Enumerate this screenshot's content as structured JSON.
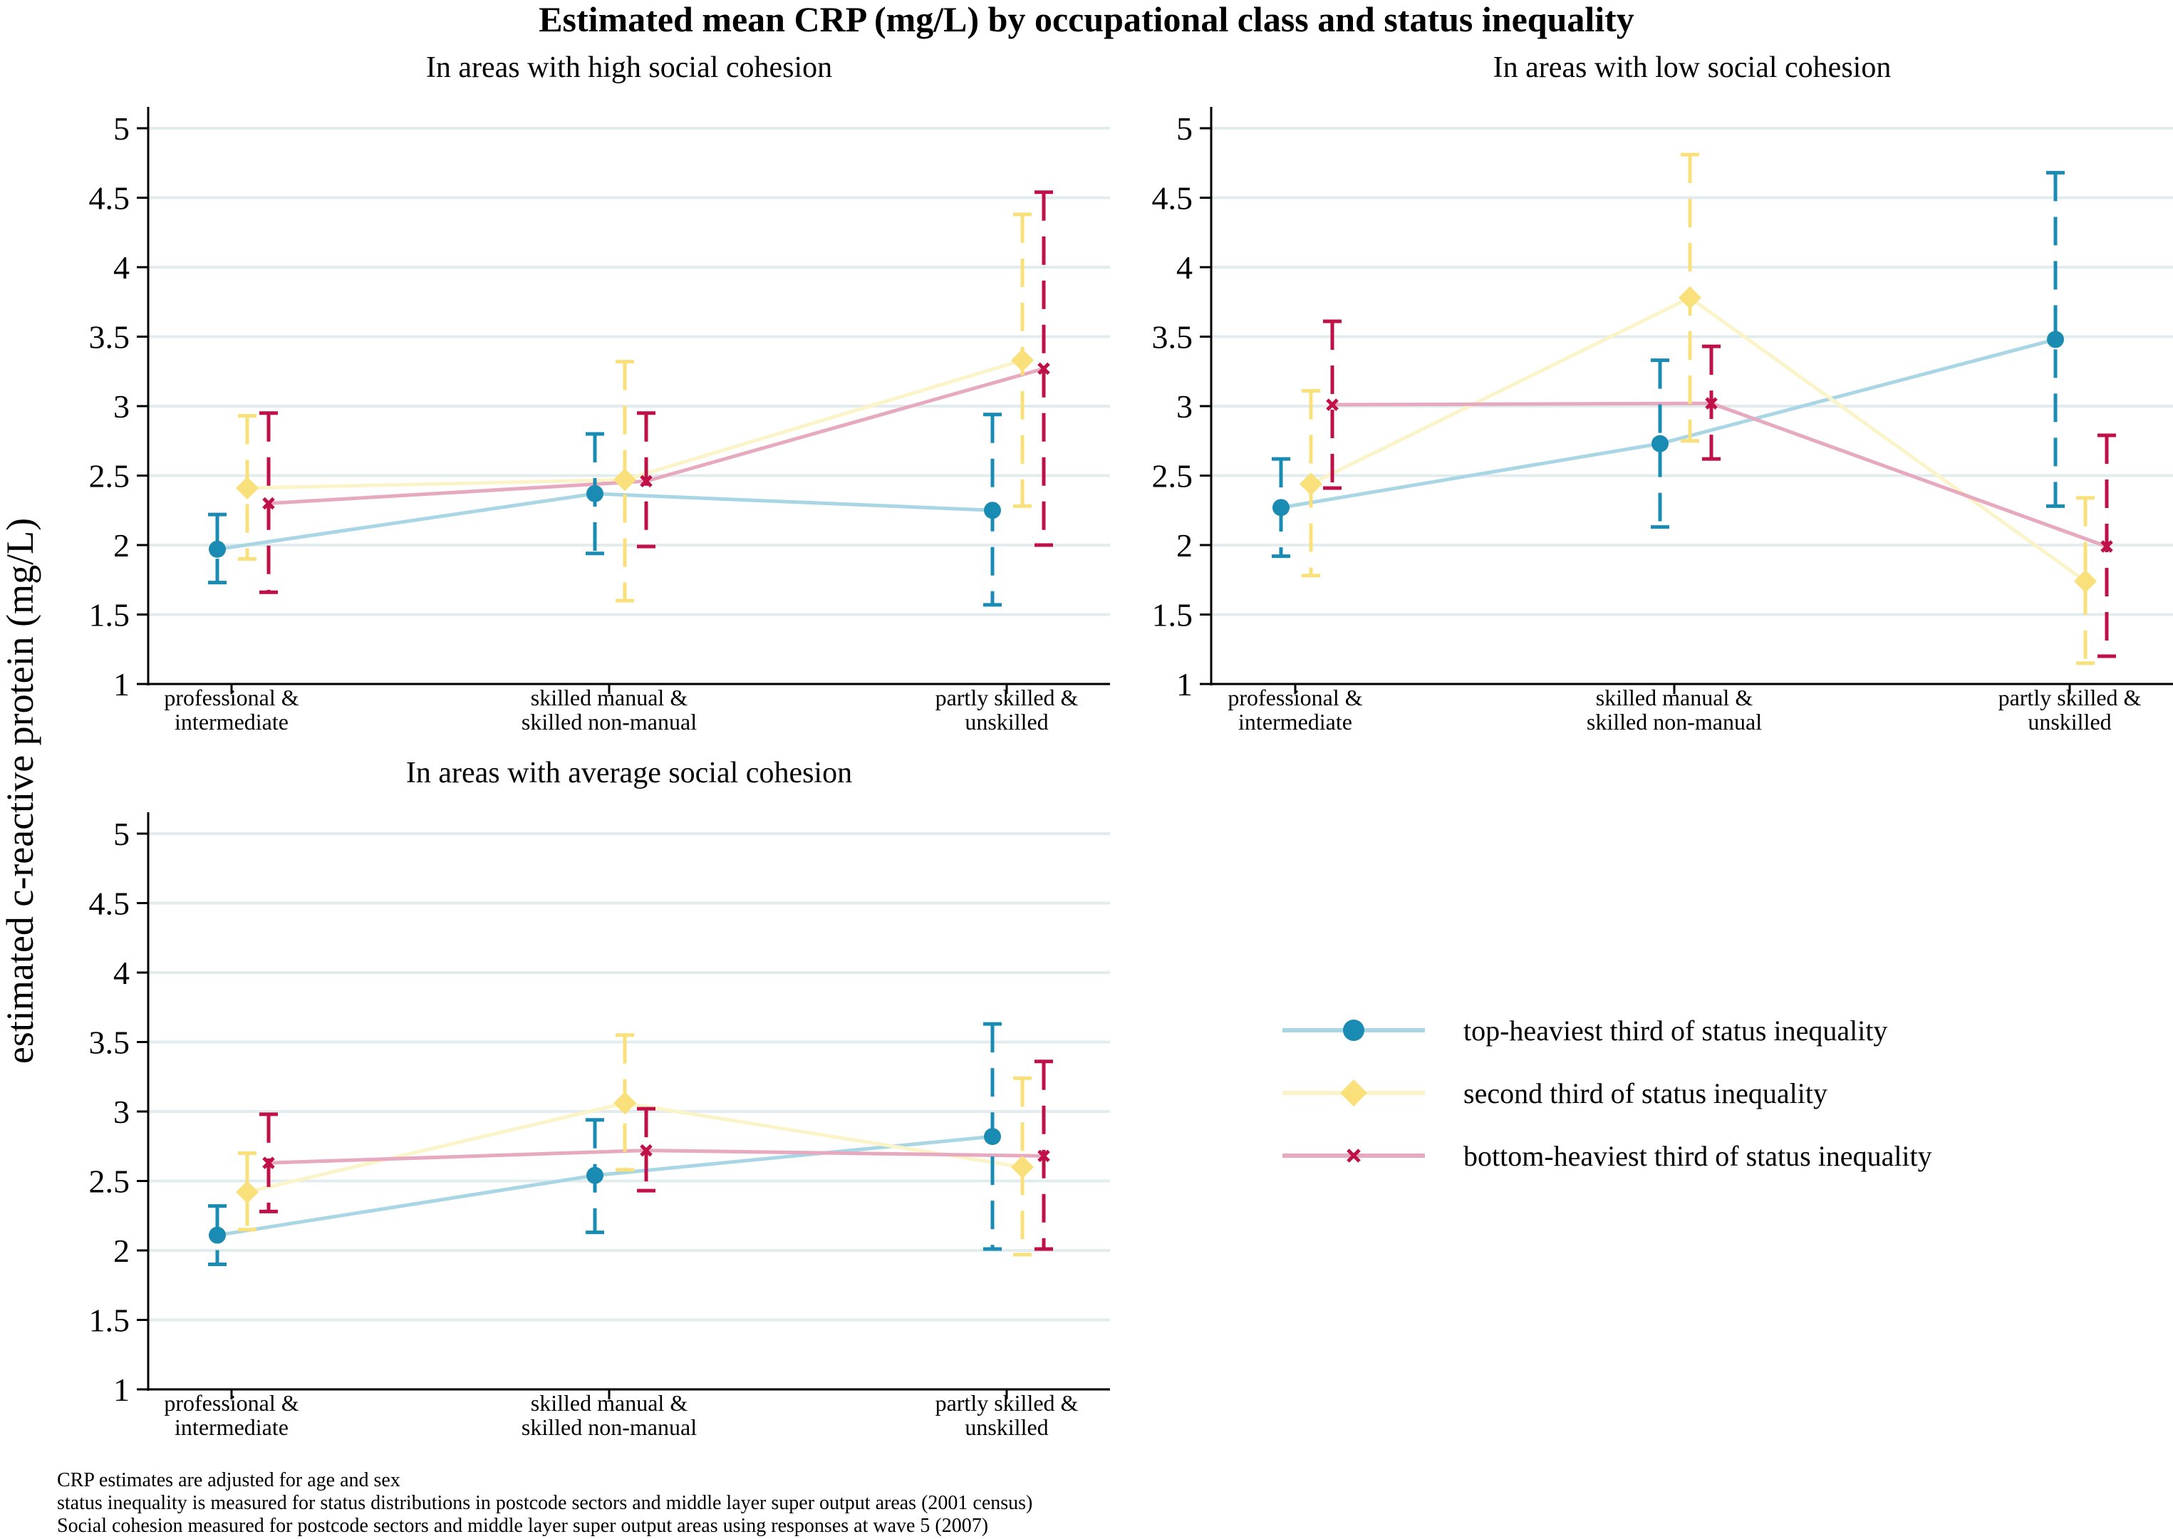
{
  "title": "Estimated mean CRP (mg/L) by occupational class and status inequality",
  "ylabel": "estimated c-reactive protein (mg/L)",
  "colors": {
    "top": "#1a8cb4",
    "top_line": "#a9d6e5",
    "second": "#f9e07a",
    "second_line": "#fbf4c9",
    "bottom": "#bf1148",
    "bottom_line": "#e6a9bf",
    "grid": "#e2ecee"
  },
  "legend": {
    "items": [
      {
        "key": "top",
        "label": "top-heaviest third of status inequality",
        "marker": "circle"
      },
      {
        "key": "second",
        "label": "second third of status inequality",
        "marker": "diamond"
      },
      {
        "key": "bottom",
        "label": "bottom-heaviest third of status inequality",
        "marker": "cross"
      }
    ]
  },
  "notes": [
    "CRP estimates are adjusted for age and sex",
    "status inequality is measured for status distributions in postcode sectors and middle layer super output areas (2001 census)",
    "Social cohesion measured for postcode sectors and middle layer super output areas using responses at wave 5 (2007)"
  ],
  "chart_data": [
    {
      "type": "line",
      "title": "In areas with high social cohesion",
      "categories": [
        [
          "professional &",
          "intermediate"
        ],
        [
          "skilled manual &",
          "skilled non-manual"
        ],
        [
          "partly skilled &",
          "unskilled"
        ]
      ],
      "ylim": [
        1,
        5
      ],
      "yticks": [
        "1",
        "1.5",
        "2",
        "2.5",
        "3",
        "3.5",
        "4",
        "4.5",
        "5"
      ],
      "series": [
        {
          "key": "top",
          "name": "top-heaviest third of status inequality",
          "values": [
            1.97,
            2.37,
            2.25
          ],
          "lower": [
            1.73,
            1.94,
            1.57
          ],
          "upper": [
            2.22,
            2.8,
            2.94
          ]
        },
        {
          "key": "second",
          "name": "second third of status inequality",
          "values": [
            2.41,
            2.47,
            3.33
          ],
          "lower": [
            1.9,
            1.6,
            2.28
          ],
          "upper": [
            2.93,
            3.32,
            4.38
          ]
        },
        {
          "key": "bottom",
          "name": "bottom-heaviest third of status inequality",
          "values": [
            2.3,
            2.46,
            3.27
          ],
          "lower": [
            1.66,
            1.99,
            2.0
          ],
          "upper": [
            2.95,
            2.95,
            4.54
          ]
        }
      ]
    },
    {
      "type": "line",
      "title": "In areas with low social cohesion",
      "categories": [
        [
          "professional &",
          "intermediate"
        ],
        [
          "skilled manual &",
          "skilled non-manual"
        ],
        [
          "partly skilled &",
          "unskilled"
        ]
      ],
      "ylim": [
        1,
        5
      ],
      "yticks": [
        "1",
        "1.5",
        "2",
        "2.5",
        "3",
        "3.5",
        "4",
        "4.5",
        "5"
      ],
      "series": [
        {
          "key": "top",
          "name": "top-heaviest third of status inequality",
          "values": [
            2.27,
            2.73,
            3.48
          ],
          "lower": [
            1.92,
            2.13,
            2.28
          ],
          "upper": [
            2.62,
            3.33,
            4.68
          ]
        },
        {
          "key": "second",
          "name": "second third of status inequality",
          "values": [
            2.44,
            3.78,
            1.74
          ],
          "lower": [
            1.78,
            2.75,
            1.15
          ],
          "upper": [
            3.11,
            4.81,
            2.34
          ]
        },
        {
          "key": "bottom",
          "name": "bottom-heaviest third of status inequality",
          "values": [
            3.01,
            3.02,
            1.99
          ],
          "lower": [
            2.41,
            2.62,
            1.2
          ],
          "upper": [
            3.61,
            3.43,
            2.79
          ]
        }
      ]
    },
    {
      "type": "line",
      "title": "In areas with average social cohesion",
      "categories": [
        [
          "professional &",
          "intermediate"
        ],
        [
          "skilled manual &",
          "skilled non-manual"
        ],
        [
          "partly skilled &",
          "unskilled"
        ]
      ],
      "ylim": [
        1,
        5
      ],
      "yticks": [
        "1",
        "1.5",
        "2",
        "2.5",
        "3",
        "3.5",
        "4",
        "4.5",
        "5"
      ],
      "series": [
        {
          "key": "top",
          "name": "top-heaviest third of status inequality",
          "values": [
            2.11,
            2.54,
            2.82
          ],
          "lower": [
            1.9,
            2.13,
            2.01
          ],
          "upper": [
            2.32,
            2.94,
            3.63
          ]
        },
        {
          "key": "second",
          "name": "second third of status inequality",
          "values": [
            2.42,
            3.06,
            2.6
          ],
          "lower": [
            2.15,
            2.58,
            1.97
          ],
          "upper": [
            2.7,
            3.55,
            3.24
          ]
        },
        {
          "key": "bottom",
          "name": "bottom-heaviest third of status inequality",
          "values": [
            2.63,
            2.72,
            2.68
          ],
          "lower": [
            2.28,
            2.43,
            2.01
          ],
          "upper": [
            2.98,
            3.02,
            3.36
          ]
        }
      ]
    }
  ]
}
